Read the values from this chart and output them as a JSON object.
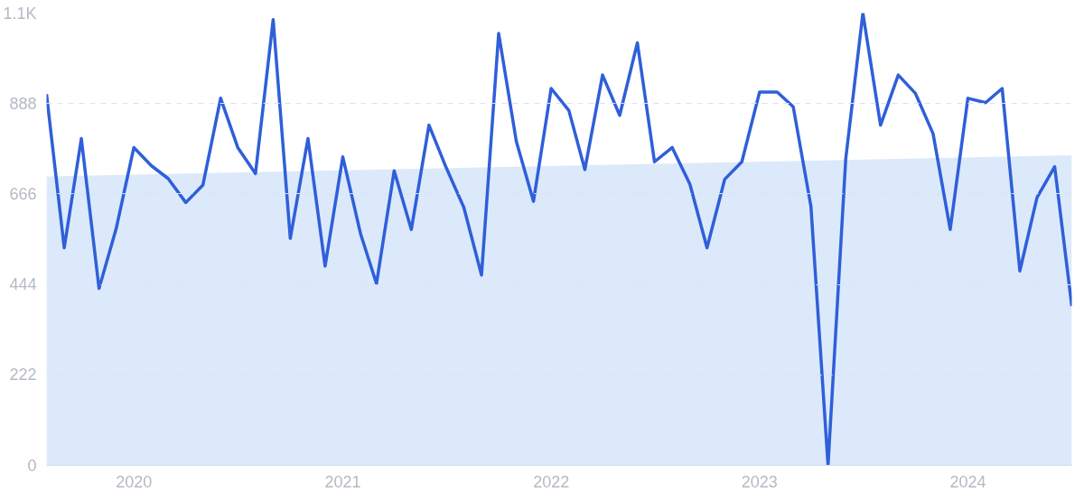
{
  "chart_data": {
    "type": "line",
    "x": [
      "2019-08",
      "2019-09",
      "2019-10",
      "2019-11",
      "2019-12",
      "2020-01",
      "2020-02",
      "2020-03",
      "2020-04",
      "2020-05",
      "2020-06",
      "2020-07",
      "2020-08",
      "2020-09",
      "2020-10",
      "2020-11",
      "2020-12",
      "2021-01",
      "2021-02",
      "2021-03",
      "2021-04",
      "2021-05",
      "2021-06",
      "2021-07",
      "2021-08",
      "2021-09",
      "2021-10",
      "2021-11",
      "2021-12",
      "2022-01",
      "2022-02",
      "2022-03",
      "2022-04",
      "2022-05",
      "2022-06",
      "2022-07",
      "2022-08",
      "2022-09",
      "2022-10",
      "2022-11",
      "2022-12",
      "2023-01",
      "2023-02",
      "2023-03",
      "2023-04",
      "2023-05",
      "2023-06",
      "2023-07",
      "2023-08",
      "2023-09",
      "2023-10",
      "2023-11",
      "2023-12",
      "2024-01",
      "2024-02",
      "2024-03",
      "2024-04",
      "2024-05",
      "2024-06",
      "2024-07"
    ],
    "series": [
      {
        "type": "area",
        "color": "#dce9fb",
        "x": [
          "2019-08",
          "2024-07"
        ],
        "values": [
          709,
          761
        ]
      },
      {
        "color": "#2f5fd9",
        "values": [
          911,
          534,
          802,
          434,
          581,
          780,
          735,
          704,
          645,
          688,
          901,
          780,
          716,
          1094,
          557,
          802,
          489,
          757,
          569,
          446,
          723,
          579,
          835,
          731,
          633,
          467,
          1060,
          795,
          648,
          925,
          871,
          726,
          958,
          859,
          1037,
          745,
          780,
          690,
          534,
          702,
          745,
          916,
          916,
          880,
          636,
          0,
          752,
          1110,
          835,
          958,
          913,
          814,
          579,
          901,
          890,
          925,
          477,
          657,
          733,
          391
        ]
      }
    ],
    "xlim": [
      "2019-08",
      "2024-07"
    ],
    "xticks": [
      {
        "value": "2020-01",
        "label": "2020"
      },
      {
        "value": "2021-01",
        "label": "2021"
      },
      {
        "value": "2022-01",
        "label": "2022"
      },
      {
        "value": "2023-01",
        "label": "2023"
      },
      {
        "value": "2024-01",
        "label": "2024"
      }
    ],
    "ylim": [
      0,
      1110
    ],
    "yticks": [
      0,
      222,
      444,
      666,
      888,
      {
        "value": 1110,
        "label": "1.1K"
      }
    ],
    "grid": "y",
    "marker": "none",
    "line_style": "solid"
  }
}
